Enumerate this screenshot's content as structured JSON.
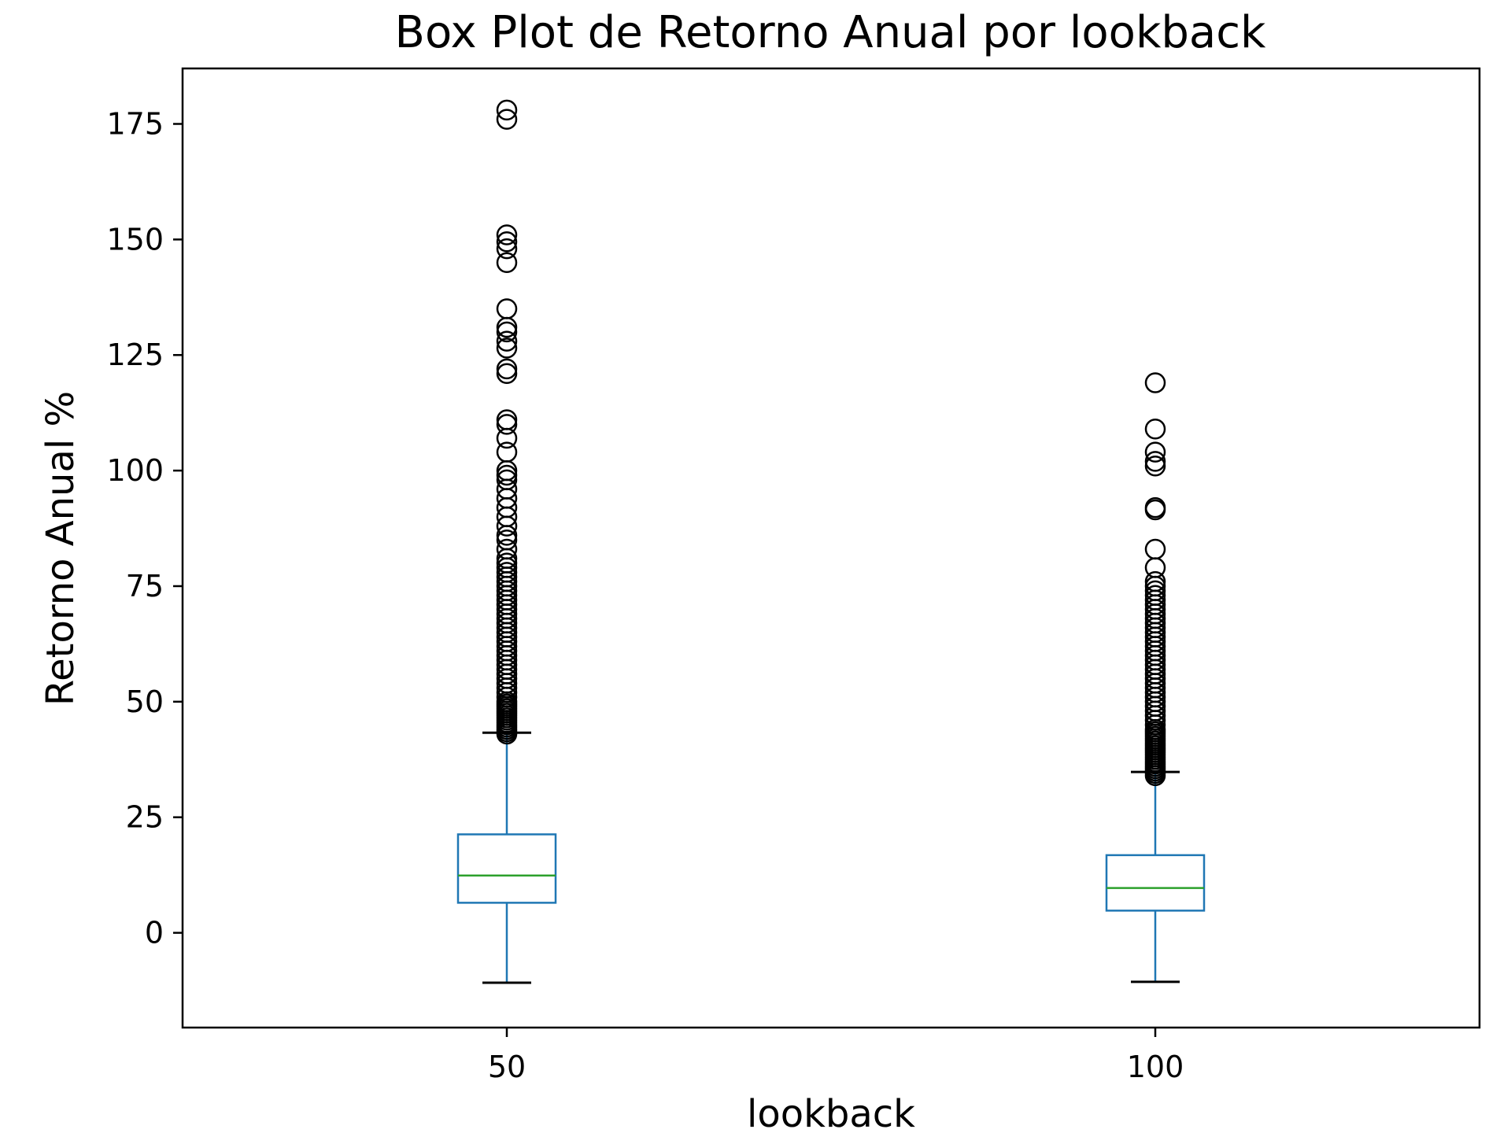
{
  "chart_data": {
    "type": "box",
    "title": "Box Plot de Retorno Anual por lookback",
    "xlabel": "lookback",
    "ylabel": "Retorno Anual %",
    "categories": [
      "50",
      "100"
    ],
    "yticks": [
      0,
      25,
      50,
      75,
      100,
      125,
      150,
      175
    ],
    "ylim": [
      -20.5,
      187
    ],
    "grid": false,
    "legend": "none",
    "colors": {
      "box": "#1f77b4",
      "median": "#2ca02c",
      "whisker": "#1f77b4",
      "cap": "#000000",
      "flier": "#000000",
      "frame": "#000000"
    },
    "boxes": [
      {
        "label": "50",
        "whislo": -10.8,
        "q1": 6.5,
        "median": 12.4,
        "q3": 21.3,
        "whishi": 43.3,
        "fliers": [
          43,
          43.5,
          44,
          44.5,
          45,
          45.5,
          46,
          46.5,
          47,
          47.5,
          48,
          48.5,
          49,
          49.5,
          50,
          51,
          52,
          53,
          54,
          55,
          56,
          57,
          58,
          59,
          60,
          61,
          62,
          63,
          64,
          65,
          66,
          67,
          68,
          69,
          70,
          71,
          72,
          73,
          74,
          75,
          76,
          77,
          78,
          79,
          80,
          81,
          83,
          85,
          86,
          88,
          90,
          92,
          94,
          96,
          98,
          99,
          100,
          104,
          107,
          110,
          111,
          121,
          122,
          126.5,
          128,
          130,
          131,
          135,
          145,
          148,
          149.5,
          151,
          176,
          178
        ]
      },
      {
        "label": "100",
        "whislo": -10.6,
        "q1": 4.8,
        "median": 9.7,
        "q3": 16.8,
        "whishi": 34.8,
        "fliers": [
          34,
          34.5,
          35,
          35.5,
          36,
          36.5,
          37,
          37.5,
          38,
          38.5,
          39,
          39.5,
          40,
          40.5,
          41,
          41.5,
          42,
          42.5,
          43,
          43.5,
          44,
          45,
          46,
          47,
          48,
          49,
          50,
          51,
          52,
          53,
          54,
          55,
          56,
          57,
          58,
          59,
          60,
          61,
          62,
          63,
          64,
          65,
          66,
          67,
          68,
          69,
          70,
          71,
          72,
          73,
          74,
          75,
          76,
          79,
          83,
          91.5,
          92,
          101,
          102,
          104,
          109,
          119
        ]
      }
    ]
  }
}
